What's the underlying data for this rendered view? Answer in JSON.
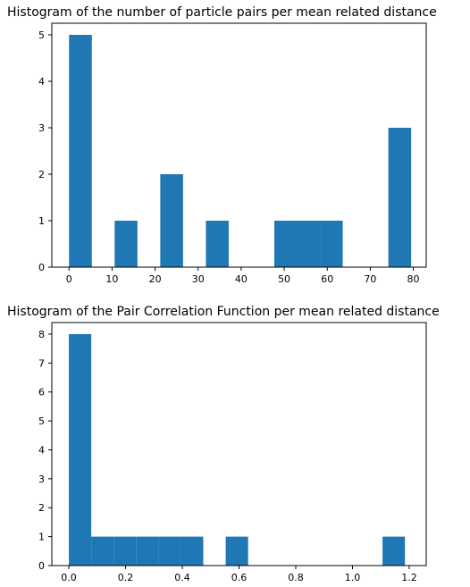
{
  "colors": {
    "bar": "#1f77b4",
    "axes": "#000000",
    "background": "#ffffff"
  },
  "chart_data": [
    {
      "type": "bar",
      "title": "Histogram of the number of particle pairs per mean related distance",
      "xlabel": "",
      "ylabel": "",
      "xlim": [
        -4,
        83
      ],
      "ylim": [
        0,
        5.25
      ],
      "grid": false,
      "bins": [
        {
          "x0": 0,
          "x1": 5.3,
          "count": 5
        },
        {
          "x0": 5.3,
          "x1": 10.6,
          "count": 0
        },
        {
          "x0": 10.6,
          "x1": 15.9,
          "count": 1
        },
        {
          "x0": 15.9,
          "x1": 21.2,
          "count": 0
        },
        {
          "x0": 21.2,
          "x1": 26.5,
          "count": 2
        },
        {
          "x0": 26.5,
          "x1": 31.8,
          "count": 0
        },
        {
          "x0": 31.8,
          "x1": 37.1,
          "count": 1
        },
        {
          "x0": 37.1,
          "x1": 42.4,
          "count": 0
        },
        {
          "x0": 42.4,
          "x1": 47.7,
          "count": 0
        },
        {
          "x0": 47.7,
          "x1": 53.0,
          "count": 1
        },
        {
          "x0": 53.0,
          "x1": 58.3,
          "count": 1
        },
        {
          "x0": 58.3,
          "x1": 63.6,
          "count": 1
        },
        {
          "x0": 63.6,
          "x1": 68.9,
          "count": 0
        },
        {
          "x0": 68.9,
          "x1": 74.2,
          "count": 0
        },
        {
          "x0": 74.2,
          "x1": 79.5,
          "count": 3
        }
      ],
      "xticks": [
        0,
        10,
        20,
        30,
        40,
        50,
        60,
        70,
        80
      ],
      "xtick_labels": [
        "0",
        "10",
        "20",
        "30",
        "40",
        "50",
        "60",
        "70",
        "80"
      ],
      "yticks": [
        0,
        1,
        2,
        3,
        4,
        5
      ],
      "ytick_labels": [
        "0",
        "1",
        "2",
        "3",
        "4",
        "5"
      ]
    },
    {
      "type": "bar",
      "title": "Histogram of the Pair Correlation Function per mean related distance",
      "xlabel": "",
      "ylabel": "",
      "xlim": [
        -0.06,
        1.26
      ],
      "ylim": [
        0,
        8.4
      ],
      "grid": false,
      "bins": [
        {
          "x0": 0.0,
          "x1": 0.079,
          "count": 8
        },
        {
          "x0": 0.079,
          "x1": 0.158,
          "count": 1
        },
        {
          "x0": 0.158,
          "x1": 0.237,
          "count": 1
        },
        {
          "x0": 0.237,
          "x1": 0.316,
          "count": 1
        },
        {
          "x0": 0.316,
          "x1": 0.395,
          "count": 1
        },
        {
          "x0": 0.395,
          "x1": 0.474,
          "count": 1
        },
        {
          "x0": 0.474,
          "x1": 0.553,
          "count": 0
        },
        {
          "x0": 0.553,
          "x1": 0.632,
          "count": 1
        },
        {
          "x0": 0.632,
          "x1": 0.711,
          "count": 0
        },
        {
          "x0": 0.711,
          "x1": 0.79,
          "count": 0
        },
        {
          "x0": 0.79,
          "x1": 0.869,
          "count": 0
        },
        {
          "x0": 0.869,
          "x1": 0.948,
          "count": 0
        },
        {
          "x0": 0.948,
          "x1": 1.027,
          "count": 0
        },
        {
          "x0": 1.027,
          "x1": 1.106,
          "count": 0
        },
        {
          "x0": 1.106,
          "x1": 1.185,
          "count": 1
        }
      ],
      "xticks": [
        0.0,
        0.2,
        0.4,
        0.6,
        0.8,
        1.0,
        1.2
      ],
      "xtick_labels": [
        "0.0",
        "0.2",
        "0.4",
        "0.6",
        "0.8",
        "1.0",
        "1.2"
      ],
      "yticks": [
        0,
        1,
        2,
        3,
        4,
        5,
        6,
        7,
        8
      ],
      "ytick_labels": [
        "0",
        "1",
        "2",
        "3",
        "4",
        "5",
        "6",
        "7",
        "8"
      ]
    }
  ]
}
